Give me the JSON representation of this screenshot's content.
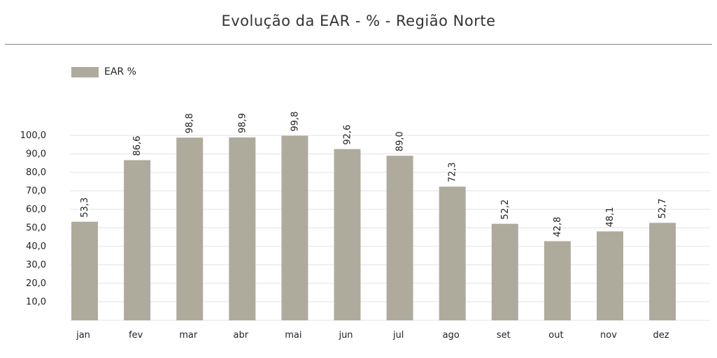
{
  "chart_data": {
    "type": "bar",
    "title": "Evolução da EAR - % - Região Norte",
    "xlabel": "",
    "ylabel": "",
    "ylim": [
      0,
      100
    ],
    "grid": true,
    "legend_position": "top-left",
    "categories": [
      "jan",
      "fev",
      "mar",
      "abr",
      "mai",
      "jun",
      "jul",
      "ago",
      "set",
      "out",
      "nov",
      "dez"
    ],
    "series": [
      {
        "name": "EAR %",
        "color": "#aeab9c",
        "values": [
          53.3,
          86.6,
          98.8,
          98.9,
          99.8,
          92.6,
          89.0,
          72.3,
          52.2,
          42.8,
          48.1,
          52.7
        ],
        "labels": [
          "53,3",
          "86,6",
          "98,8",
          "98,9",
          "99,8",
          "92,6",
          "89,0",
          "72,3",
          "52,2",
          "42,8",
          "48,1",
          "52,7"
        ]
      }
    ],
    "yticks": [
      10,
      20,
      30,
      40,
      50,
      60,
      70,
      80,
      90,
      100
    ],
    "ytick_labels": [
      "10,0",
      "20,0",
      "30,0",
      "40,0",
      "50,0",
      "60,0",
      "70,0",
      "80,0",
      "90,0",
      "100,0"
    ]
  }
}
